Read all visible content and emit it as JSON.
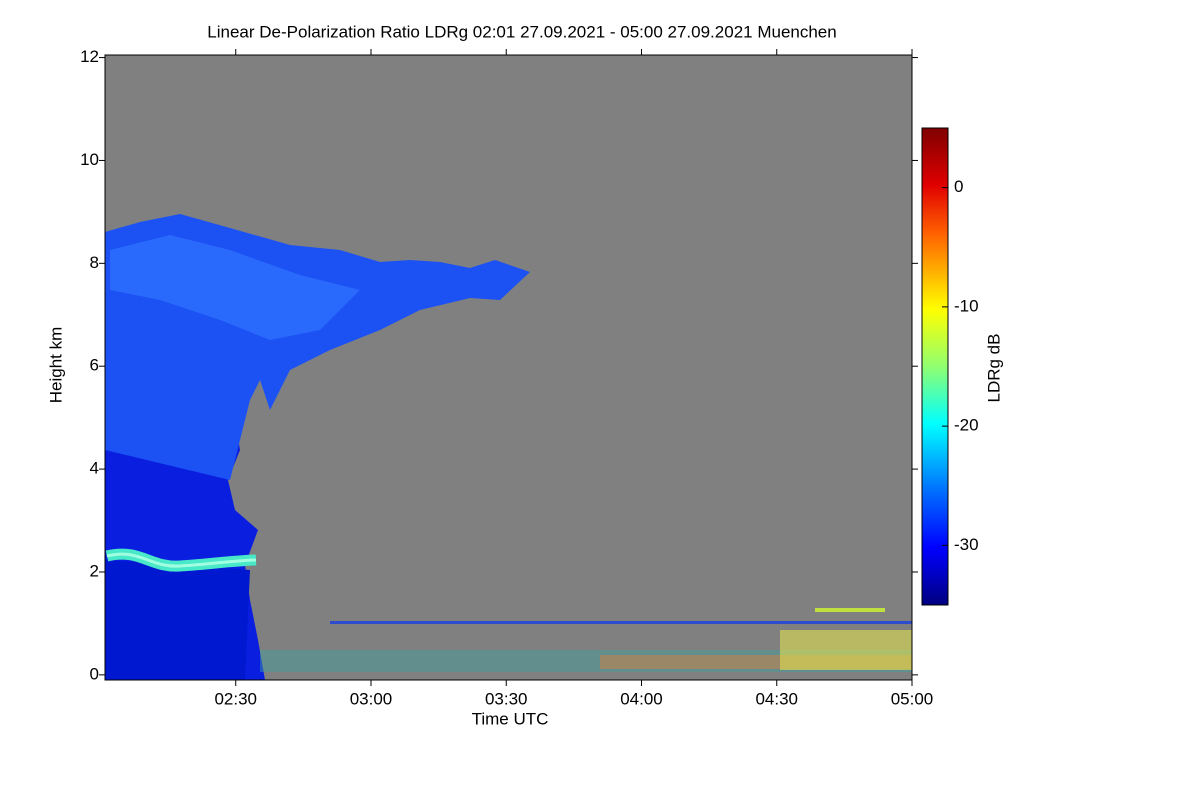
{
  "chart_data": {
    "type": "heatmap",
    "title": "Linear De-Polarization Ratio LDRg   02:01 27.09.2021 - 05:00 27.09.2021 Muenchen",
    "x_label": "Time UTC",
    "y_label": "Height km",
    "colorbar_label": "LDRg dB",
    "xlim": [
      "02:01",
      "05:00"
    ],
    "xticks": [
      "02:30",
      "03:00",
      "03:30",
      "04:00",
      "04:30",
      "05:00"
    ],
    "ylim": [
      -0.1,
      12.05
    ],
    "yticks": [
      0,
      2,
      4,
      6,
      8,
      10,
      12
    ],
    "clim": [
      -35,
      5
    ],
    "cticks": [
      0,
      -10,
      -20,
      -30
    ]
  }
}
